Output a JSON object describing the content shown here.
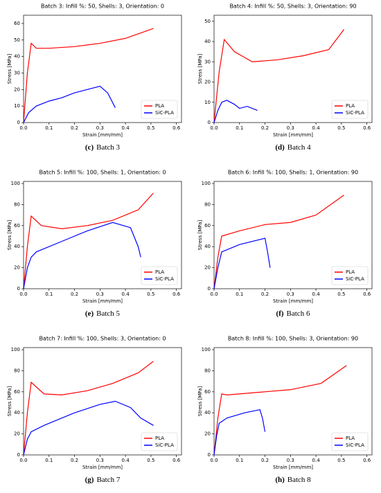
{
  "chart_data": [
    {
      "type": "line",
      "title": "Batch 3: Infill %: 50, Shells: 3, Orientation: 0",
      "x_label": "Strain [mm/mm]",
      "y_label": "Stress [MPa]",
      "caption_label": "(c)",
      "caption": "Batch 3",
      "xlim": [
        0,
        0.62
      ],
      "xticks": [
        {
          "value": 0,
          "label": "0.0"
        },
        0.1,
        0.2,
        0.3,
        0.4,
        0.5,
        0.6
      ],
      "ylim": [
        0,
        65
      ],
      "yticks": [
        0,
        10,
        20,
        30,
        40,
        50,
        60
      ],
      "legend": "lower right",
      "series": [
        {
          "name": "PLA",
          "color": "#ff0000",
          "x": [
            0,
            0.015,
            0.03,
            0.05,
            0.1,
            0.2,
            0.3,
            0.4,
            0.51
          ],
          "values": [
            0,
            30,
            48,
            45,
            45,
            46,
            48,
            51,
            57
          ]
        },
        {
          "name": "SiC-PLA",
          "color": "#0000ff",
          "x": [
            0,
            0.02,
            0.05,
            0.1,
            0.15,
            0.2,
            0.25,
            0.3,
            0.33,
            0.36
          ],
          "values": [
            0,
            6,
            10,
            13,
            15,
            18,
            20,
            22,
            18,
            9
          ]
        }
      ]
    },
    {
      "type": "line",
      "title": "Batch 4: Infill %: 50, Shells: 3, Orientation: 90",
      "x_label": "Strain [mm/mm]",
      "y_label": "Stress [MPa]",
      "caption_label": "(d)",
      "caption": "Batch 4",
      "xlim": [
        0,
        0.62
      ],
      "xticks": [
        {
          "value": 0,
          "label": "0.0"
        },
        0.1,
        0.2,
        0.3,
        0.4,
        0.5,
        0.6
      ],
      "ylim": [
        0,
        53
      ],
      "yticks": [
        0,
        10,
        20,
        30,
        40,
        50
      ],
      "legend": "lower right",
      "series": [
        {
          "name": "PLA",
          "color": "#ff0000",
          "x": [
            0,
            0.02,
            0.04,
            0.08,
            0.15,
            0.25,
            0.35,
            0.45,
            0.51
          ],
          "values": [
            0,
            25,
            41,
            35,
            30,
            31,
            33,
            36,
            46
          ]
        },
        {
          "name": "SiC-PLA",
          "color": "#0000ff",
          "x": [
            0,
            0.015,
            0.03,
            0.05,
            0.08,
            0.1,
            0.13,
            0.17
          ],
          "values": [
            0,
            6,
            10,
            11,
            9,
            7,
            8,
            6
          ]
        }
      ]
    },
    {
      "type": "line",
      "title": "Batch 5: Infill %: 100, Shells: 1, Orientation: 0",
      "x_label": "Strain [mm/mm]",
      "y_label": "Stress [MPa]",
      "caption_label": "(e)",
      "caption": "Batch 5",
      "xlim": [
        0,
        0.62
      ],
      "xticks": [
        {
          "value": 0,
          "label": "0.0"
        },
        0.1,
        0.2,
        0.3,
        0.4,
        0.5,
        0.6
      ],
      "ylim": [
        0,
        102
      ],
      "yticks": [
        0,
        20,
        40,
        60,
        80,
        100
      ],
      "legend": "lower right",
      "series": [
        {
          "name": "PLA",
          "color": "#ff0000",
          "x": [
            0,
            0.015,
            0.03,
            0.07,
            0.15,
            0.25,
            0.35,
            0.45,
            0.51
          ],
          "values": [
            0,
            40,
            69,
            60,
            57,
            60,
            65,
            75,
            91
          ]
        },
        {
          "name": "SiC-PLA",
          "color": "#0000ff",
          "x": [
            0,
            0.015,
            0.03,
            0.05,
            0.15,
            0.25,
            0.35,
            0.42,
            0.45,
            0.46
          ],
          "values": [
            0,
            20,
            30,
            35,
            45,
            55,
            63,
            58,
            40,
            30
          ]
        }
      ]
    },
    {
      "type": "line",
      "title": "Batch 6: Infill %: 100, Shells: 1, Orientation: 90",
      "x_label": "Strain [mm/mm]",
      "y_label": "Stress [MPa]",
      "caption_label": "(f)",
      "caption": "Batch 6",
      "xlim": [
        0,
        0.62
      ],
      "xticks": [
        {
          "value": 0,
          "label": "0.0"
        },
        0.1,
        0.2,
        0.3,
        0.4,
        0.5,
        0.6
      ],
      "ylim": [
        0,
        102
      ],
      "yticks": [
        0,
        20,
        40,
        60,
        80,
        100
      ],
      "legend": "lower right",
      "series": [
        {
          "name": "PLA",
          "color": "#ff0000",
          "x": [
            0,
            0.015,
            0.03,
            0.1,
            0.2,
            0.3,
            0.4,
            0.51
          ],
          "values": [
            0,
            30,
            50,
            55,
            61,
            63,
            70,
            89
          ]
        },
        {
          "name": "SiC-PLA",
          "color": "#0000ff",
          "x": [
            0,
            0.015,
            0.03,
            0.1,
            0.2,
            0.21,
            0.22
          ],
          "values": [
            0,
            20,
            35,
            42,
            48,
            35,
            20
          ]
        }
      ]
    },
    {
      "type": "line",
      "title": "Batch 7: Infill %: 100, Shells: 3, Orientation: 0",
      "x_label": "Strain [mm/mm]",
      "y_label": "Stress [MPa]",
      "caption_label": "(g)",
      "caption": "Batch 7",
      "xlim": [
        0,
        0.62
      ],
      "xticks": [
        {
          "value": 0,
          "label": "0.0"
        },
        0.1,
        0.2,
        0.3,
        0.4,
        0.5,
        0.6
      ],
      "ylim": [
        0,
        102
      ],
      "yticks": [
        0,
        20,
        40,
        60,
        80,
        100
      ],
      "legend": "lower right",
      "series": [
        {
          "name": "PLA",
          "color": "#ff0000",
          "x": [
            0,
            0.015,
            0.03,
            0.08,
            0.15,
            0.25,
            0.35,
            0.45,
            0.51
          ],
          "values": [
            0,
            40,
            69,
            58,
            57,
            61,
            68,
            78,
            89
          ]
        },
        {
          "name": "SiC-PLA",
          "color": "#0000ff",
          "x": [
            0,
            0.015,
            0.03,
            0.08,
            0.2,
            0.3,
            0.36,
            0.42,
            0.46,
            0.51
          ],
          "values": [
            0,
            15,
            22,
            28,
            40,
            48,
            51,
            45,
            35,
            28
          ]
        }
      ]
    },
    {
      "type": "line",
      "title": "Batch 8: Infill %: 100, Shells: 3, Orientation: 90",
      "x_label": "Strain [mm/mm]",
      "y_label": "Stress [MPa]",
      "caption_label": "(h)",
      "caption": "Batch 8",
      "xlim": [
        0,
        0.62
      ],
      "xticks": [
        {
          "value": 0,
          "label": "0.0"
        },
        0.1,
        0.2,
        0.3,
        0.4,
        0.5,
        0.6
      ],
      "ylim": [
        0,
        102
      ],
      "yticks": [
        0,
        20,
        40,
        60,
        80,
        100
      ],
      "legend": "lower right",
      "series": [
        {
          "name": "PLA",
          "color": "#ff0000",
          "x": [
            0,
            0.015,
            0.03,
            0.05,
            0.2,
            0.3,
            0.42,
            0.52
          ],
          "values": [
            0,
            35,
            58,
            57,
            60,
            62,
            68,
            85
          ]
        },
        {
          "name": "SiC-PLA",
          "color": "#0000ff",
          "x": [
            0,
            0.01,
            0.02,
            0.05,
            0.12,
            0.18,
            0.19,
            0.2
          ],
          "values": [
            0,
            18,
            30,
            35,
            40,
            43,
            35,
            22
          ]
        }
      ]
    }
  ]
}
